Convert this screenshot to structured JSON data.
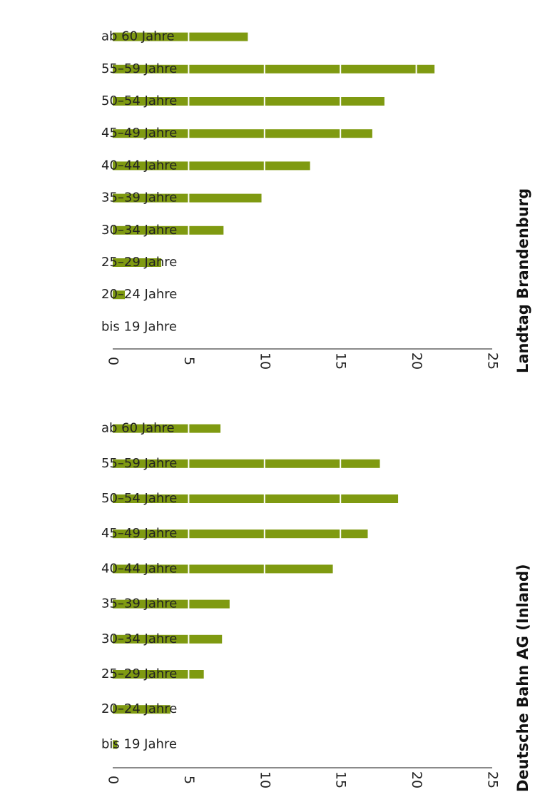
{
  "chart_data": [
    {
      "type": "bar",
      "orientation": "horizontal",
      "title": "Deutsche Bahn AG (Inland)",
      "xlim": [
        0,
        25
      ],
      "ticks": [
        0,
        5,
        10,
        15,
        20,
        25
      ],
      "categories": [
        "bis 19 Jahre",
        "20–24 Jahre",
        "25–29 Jahre",
        "30–34 Jahre",
        "35–39 Jahre",
        "40–44 Jahre",
        "45–49 Jahre",
        "50–54 Jahre",
        "55–59 Jahre",
        "ab 60 Jahre"
      ],
      "values": [
        0.3,
        3.8,
        6.0,
        7.2,
        7.7,
        14.5,
        16.8,
        18.8,
        17.6,
        7.1
      ],
      "color": "#7f9a11",
      "grid_color": "#ffffff"
    },
    {
      "type": "bar",
      "orientation": "horizontal",
      "title": "Landtag Brandenburg",
      "xlim": [
        0,
        25
      ],
      "ticks": [
        0,
        5,
        10,
        15,
        20,
        25
      ],
      "categories": [
        "bis 19 Jahre",
        "20–24 Jahre",
        "25–29 Jahre",
        "30–34 Jahre",
        "35–39 Jahre",
        "40–44 Jahre",
        "45–49 Jahre",
        "50–54 Jahre",
        "55–59 Jahre",
        "ab 60 Jahre"
      ],
      "values": [
        0,
        0.8,
        3.2,
        7.3,
        9.8,
        13.0,
        17.1,
        17.9,
        21.2,
        8.9
      ],
      "color": "#7f9a11",
      "grid_color": "#ffffff"
    }
  ]
}
